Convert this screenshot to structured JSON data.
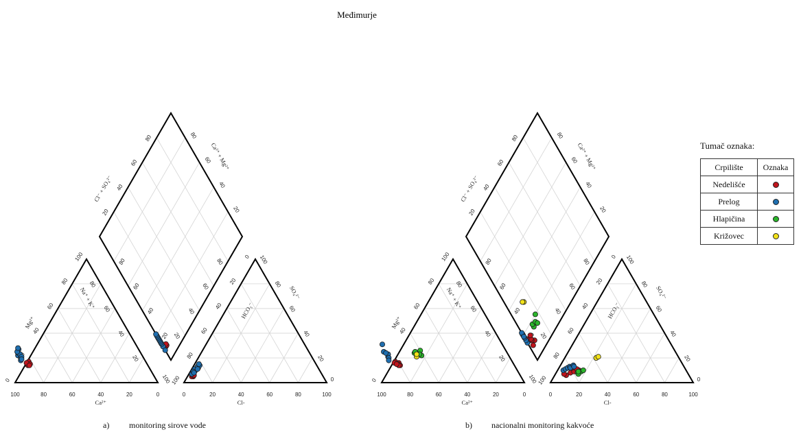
{
  "title": "Međimurje",
  "legend": {
    "title": "Tumač oznaka:",
    "col_site": "Crpilište",
    "col_mark": "Oznaka",
    "entries": [
      {
        "name": "Nedelišće",
        "color": "#c0141c"
      },
      {
        "name": "Prelog",
        "color": "#1f6fb0"
      },
      {
        "name": "Hlapičina",
        "color": "#2bb52b"
      },
      {
        "name": "Križovec",
        "color": "#f2e21a"
      }
    ]
  },
  "panels": {
    "a": {
      "letter": "a)",
      "caption": "monitoring sirove vode"
    },
    "b": {
      "letter": "b)",
      "caption": "nacionalni monitoring kakvoće"
    }
  },
  "axis_labels": {
    "ca": "Ca²⁺",
    "mg": "Mg²⁺",
    "nak": "Na⁺ + K⁺",
    "cl": "Cl-",
    "hco3": "HCO₃⁻",
    "so4": "SO₄²⁻",
    "cl_so4": "Cl⁻ + SO₄²⁻",
    "ca_mg": "Ca²⁺ + Mg²⁺"
  },
  "ticks": [
    "0",
    "20",
    "40",
    "60",
    "80",
    "100"
  ],
  "chart_data": {
    "type": "scatter",
    "subtype": "piper-diagram",
    "title": "Međimurje",
    "units": "% meq/L",
    "panels": [
      {
        "caption": "monitoring sirove vode",
        "series": [
          {
            "name": "Nedelišće",
            "color": "#c0141c",
            "points": [
              {
                "ca": 84,
                "mg": 14,
                "cl": 3,
                "so4": 6,
                "cl_so4": 9
              },
              {
                "ca": 83,
                "mg": 16,
                "cl": 4,
                "so4": 5,
                "cl_so4": 10
              },
              {
                "ca": 82,
                "mg": 17,
                "cl": 4,
                "so4": 6,
                "cl_so4": 10
              },
              {
                "ca": 82,
                "mg": 15,
                "cl": 3,
                "so4": 5,
                "cl_so4": 9
              },
              {
                "ca": 84,
                "mg": 16,
                "cl": 3,
                "so4": 6,
                "cl_so4": 11
              },
              {
                "ca": 83,
                "mg": 14,
                "cl": 4,
                "so4": 6,
                "cl_so4": 10
              }
            ]
          },
          {
            "name": "Prelog",
            "color": "#1f6fb0",
            "points": [
              {
                "ca": 87,
                "mg": 22,
                "cl": 2,
                "so4": 7,
                "cl_so4": 11
              },
              {
                "ca": 86,
                "mg": 24,
                "cl": 3,
                "so4": 9,
                "cl_so4": 13
              },
              {
                "ca": 85,
                "mg": 26,
                "cl": 3,
                "so4": 10,
                "cl_so4": 14
              },
              {
                "ca": 86,
                "mg": 20,
                "cl": 2,
                "so4": 11,
                "cl_so4": 15
              },
              {
                "ca": 84,
                "mg": 27,
                "cl": 4,
                "so4": 12,
                "cl_so4": 16
              },
              {
                "ca": 85,
                "mg": 23,
                "cl": 3,
                "so4": 13,
                "cl_so4": 17
              },
              {
                "ca": 87,
                "mg": 18,
                "cl": 4,
                "so4": 14,
                "cl_so4": 18
              },
              {
                "ca": 86,
                "mg": 25,
                "cl": 3,
                "so4": 15,
                "cl_so4": 19
              },
              {
                "ca": 84,
                "mg": 28,
                "cl": 4,
                "so4": 11,
                "cl_so4": 20
              },
              {
                "ca": 85,
                "mg": 21,
                "cl": 2,
                "so4": 9,
                "cl_so4": 21
              },
              {
                "ca": 86,
                "mg": 19,
                "cl": 3,
                "so4": 8,
                "cl_so4": 8
              }
            ]
          }
        ]
      },
      {
        "caption": "nacionalni monitoring kakvoće",
        "series": [
          {
            "name": "Nedelišće",
            "color": "#c0141c",
            "points": [
              {
                "ca": 80,
                "mg": 14,
                "cl": 8,
                "so4": 6,
                "cl_so4": 10
              },
              {
                "ca": 80,
                "mg": 16,
                "cl": 10,
                "so4": 8,
                "cl_so4": 12
              },
              {
                "ca": 82,
                "mg": 17,
                "cl": 12,
                "so4": 9,
                "cl_so4": 14
              },
              {
                "ca": 81,
                "mg": 15,
                "cl": 15,
                "so4": 10,
                "cl_so4": 13
              },
              {
                "ca": 83,
                "mg": 16,
                "cl": 6,
                "so4": 7,
                "cl_so4": 16
              },
              {
                "ca": 81,
                "mg": 14,
                "cl": 9,
                "so4": 12,
                "cl_so4": 15
              },
              {
                "ca": 82,
                "mg": 15,
                "cl": 13,
                "so4": 11,
                "cl_so4": 9
              }
            ]
          },
          {
            "name": "Prelog",
            "color": "#1f6fb0",
            "points": [
              {
                "ca": 85,
                "mg": 21,
                "cl": 4,
                "so4": 10,
                "cl_so4": 14
              },
              {
                "ca": 84,
                "mg": 23,
                "cl": 5,
                "so4": 11,
                "cl_so4": 16
              },
              {
                "ca": 86,
                "mg": 25,
                "cl": 6,
                "so4": 12,
                "cl_so4": 18
              },
              {
                "ca": 84,
                "mg": 31,
                "cl": 7,
                "so4": 13,
                "cl_so4": 20
              },
              {
                "ca": 85,
                "mg": 20,
                "cl": 8,
                "so4": 12,
                "cl_so4": 21
              },
              {
                "ca": 86,
                "mg": 18,
                "cl": 9,
                "so4": 14,
                "cl_so4": 22
              },
              {
                "ca": 85,
                "mg": 24,
                "cl": 10,
                "so4": 13,
                "cl_so4": 19
              }
            ]
          },
          {
            "name": "Hlapičina",
            "color": "#2bb52b",
            "points": [
              {
                "ca": 65,
                "mg": 24,
                "cl": 15,
                "so4": 8,
                "cl_so4": 16
              },
              {
                "ca": 64,
                "mg": 25,
                "cl": 17,
                "so4": 9,
                "cl_so4": 18
              },
              {
                "ca": 61,
                "mg": 22,
                "cl": 16,
                "so4": 7,
                "cl_so4": 20
              },
              {
                "ca": 60,
                "mg": 26,
                "cl": 18,
                "so4": 10,
                "cl_so4": 17
              },
              {
                "ca": 62,
                "mg": 23,
                "cl": 15,
                "so4": 9,
                "cl_so4": 15
              }
            ]
          },
          {
            "name": "Križovec",
            "color": "#f2e21a",
            "points": [
              {
                "ca": 65,
                "mg": 21,
                "cl": 22,
                "so4": 20,
                "cl_so4": 33
              },
              {
                "ca": 64,
                "mg": 23,
                "cl": 23,
                "so4": 21,
                "cl_so4": 34
              }
            ]
          }
        ]
      }
    ]
  }
}
